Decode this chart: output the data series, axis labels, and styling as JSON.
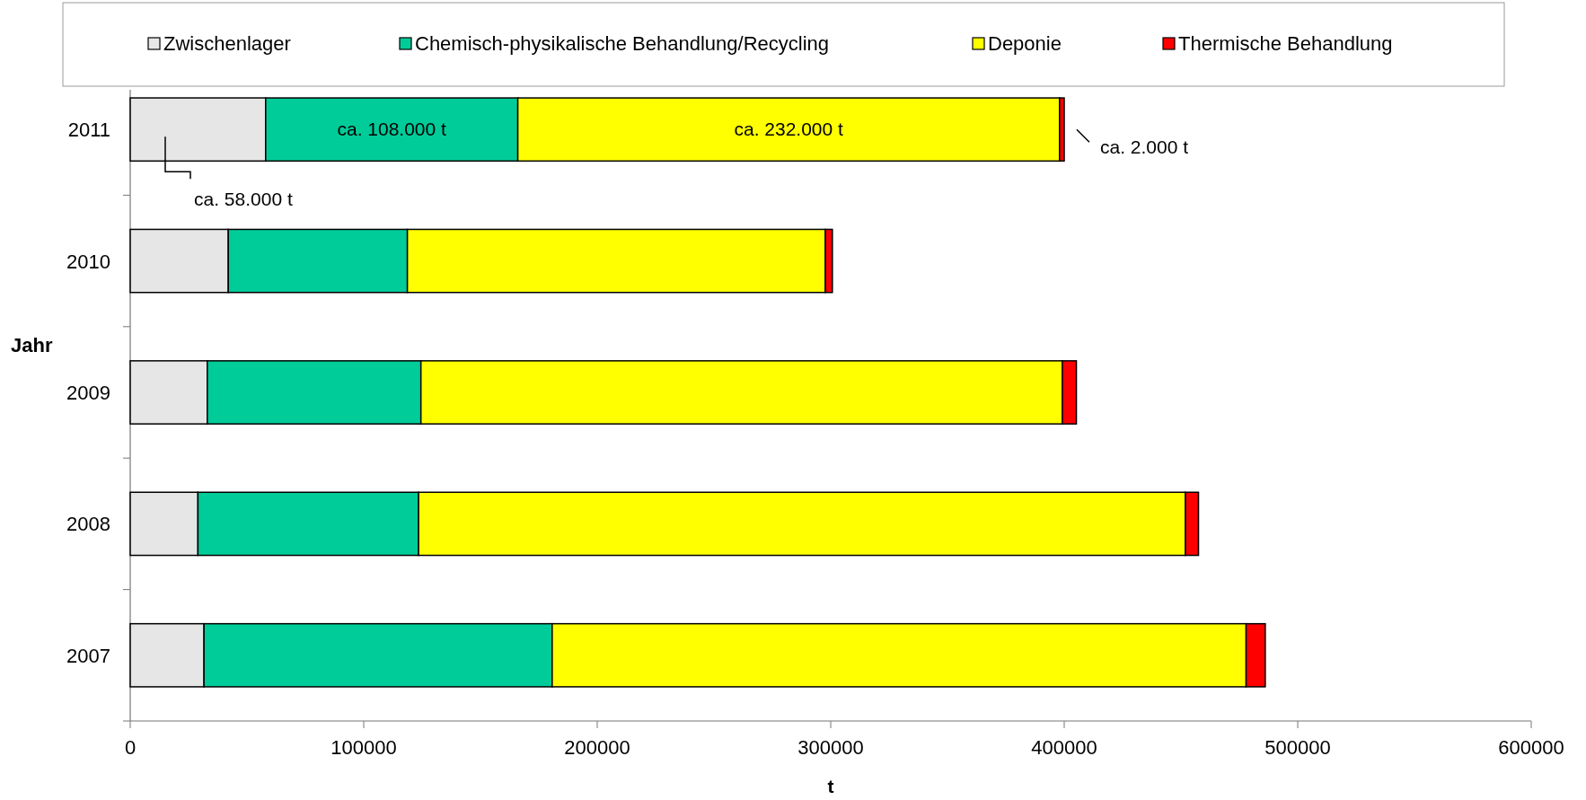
{
  "chart_data": {
    "type": "bar",
    "orientation": "horizontal",
    "stacked": true,
    "xlabel": "t",
    "ylabel": "Jahr",
    "legend": "top",
    "categories": [
      "2011",
      "2010",
      "2009",
      "2008",
      "2007"
    ],
    "series": [
      {
        "name": "Zwischenlager",
        "color": "#e6e6e6",
        "values": [
          58000,
          42000,
          33000,
          29000,
          31600
        ]
      },
      {
        "name": "Chemisch-physikalische Behandlung/Recycling",
        "color": "#00cc99",
        "values": [
          108000,
          76700,
          91500,
          94500,
          149100
        ]
      },
      {
        "name": "Deponie",
        "color": "#ffff00",
        "values": [
          232000,
          179000,
          274700,
          328400,
          297200
        ]
      },
      {
        "name": "Thermische Behandlung",
        "color": "#ff0000",
        "values": [
          2000,
          3000,
          6000,
          5600,
          8200
        ]
      }
    ],
    "xlim": [
      0,
      600000
    ],
    "xticks": [
      0,
      100000,
      200000,
      300000,
      400000,
      500000,
      600000
    ],
    "annotations": [
      "ca. 58.000 t",
      "ca. 108.000 t",
      "ca. 232.000 t",
      "ca. 2.000 t"
    ]
  }
}
